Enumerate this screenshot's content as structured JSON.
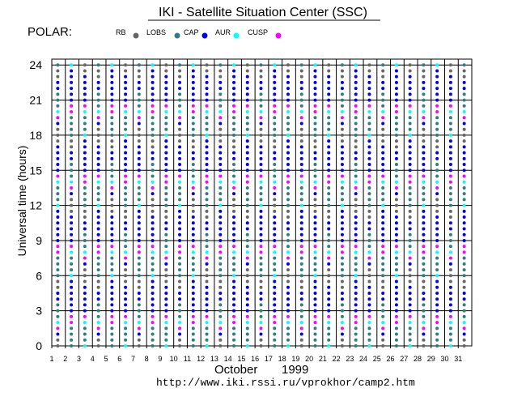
{
  "chart_data": {
    "type": "scatter",
    "title": "IKI - Satellite Situation Center (SSC)",
    "satellite": "POLAR:",
    "ylabel": "Universal time  (hours)",
    "xlabel_month": "October",
    "xlabel_year": "1999",
    "url": "http://www.iki.rssi.ru/vprokhor/camp2.htm",
    "ylim": [
      0,
      24.5
    ],
    "xlim": [
      1,
      32
    ],
    "y_ticks": [
      0,
      3,
      6,
      9,
      12,
      15,
      18,
      21,
      24
    ],
    "x_ticks": [
      1,
      2,
      3,
      4,
      5,
      6,
      7,
      8,
      9,
      10,
      11,
      12,
      13,
      14,
      15,
      16,
      17,
      18,
      19,
      20,
      21,
      22,
      23,
      24,
      25,
      26,
      27,
      28,
      29,
      30,
      31
    ],
    "grid": true,
    "legend": [
      {
        "key": "RB",
        "label": "RB",
        "color": "#666666"
      },
      {
        "key": "LOBS",
        "label": "LOBS",
        "color": "#2e7d80"
      },
      {
        "key": "CAP",
        "label": "CAP",
        "color": "#0000ee"
      },
      {
        "key": "AUR",
        "label": "AUR",
        "color": "#00ffff"
      },
      {
        "key": "CUSP",
        "label": "CUSP",
        "color": "#ff00ff"
      }
    ],
    "hours_per_day": 24,
    "point_spacing_hours": 0.5,
    "point_offset_days": 0.5,
    "region_default": "LOBS",
    "orbit_period_hours": 18,
    "pattern_start_hours": 0,
    "orbit_pattern": [
      {
        "from": 0.0,
        "to": 1.0,
        "region": "RB"
      },
      {
        "from": 1.0,
        "to": 1.5,
        "region": "CAP"
      },
      {
        "from": 1.5,
        "to": 2.0,
        "region": "CUSP"
      },
      {
        "from": 2.0,
        "to": 2.5,
        "region": "AUR"
      },
      {
        "from": 4.0,
        "to": 5.0,
        "region": "CAP"
      },
      {
        "from": 5.0,
        "to": 6.0,
        "region": "RB"
      },
      {
        "from": 8.0,
        "to": 9.0,
        "region": "CUSP"
      },
      {
        "from": 9.0,
        "to": 12.0,
        "region": "CAP"
      },
      {
        "from": 12.0,
        "to": 12.5,
        "region": "AUR"
      },
      {
        "from": 12.5,
        "to": 14.0,
        "region": "LOBS"
      },
      {
        "from": 14.0,
        "to": 14.5,
        "region": "AUR"
      },
      {
        "from": 14.5,
        "to": 15.0,
        "region": "CUSP"
      },
      {
        "from": 15.0,
        "to": 17.5,
        "region": "CAP"
      },
      {
        "from": 17.5,
        "to": 18.0,
        "region": "RB"
      }
    ]
  }
}
